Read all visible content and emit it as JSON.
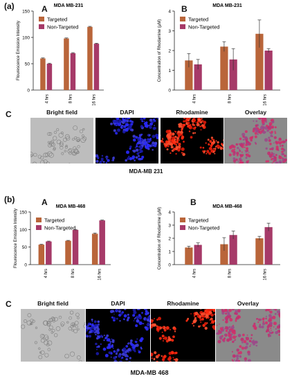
{
  "panels": [
    {
      "label": "(a)",
      "chart_a": {
        "letter": "A",
        "title": "MDA MB-231",
        "ylabel": "Flourescence Emission Intensity",
        "categories": [
          "4 hrs",
          "8 hrs",
          "16 hrs"
        ],
        "ylim": [
          0,
          150
        ],
        "yticks": [
          "0",
          "50",
          "100",
          "150"
        ],
        "series": [
          {
            "name": "Targeted",
            "color": "#b9653a",
            "values": [
              60,
              98,
              120
            ],
            "errors": [
              1,
              1,
              1
            ]
          },
          {
            "name": "Non-Targeted",
            "color": "#a63a68",
            "values": [
              50,
              70,
              88
            ],
            "errors": [
              1,
              1,
              1
            ]
          }
        ]
      },
      "chart_b": {
        "letter": "B",
        "title": "MDA MB-231",
        "ylabel": "Concentration of Rhodamine (µM)",
        "categories": [
          "4 hrs",
          "8 hrs",
          "16 hrs"
        ],
        "ylim": [
          0,
          4
        ],
        "yticks": [
          "0",
          "1",
          "2",
          "3",
          "4"
        ],
        "series": [
          {
            "name": "Targeted",
            "color": "#b9653a",
            "values": [
              1.5,
              2.2,
              2.85
            ],
            "errors": [
              0.35,
              0.25,
              0.7
            ]
          },
          {
            "name": "Non-Targeted",
            "color": "#a63a68",
            "values": [
              1.3,
              1.55,
              2.0
            ],
            "errors": [
              0.25,
              0.55,
              0.1
            ]
          }
        ]
      },
      "images_letter": "C",
      "image_labels": [
        "Bright field",
        "DAPI",
        "Rhodamine",
        "Overlay"
      ],
      "caption": "MDA-MB 231"
    },
    {
      "label": "(b)",
      "chart_a": {
        "letter": "A",
        "title": "MDA MB-468",
        "ylabel": "Flourescence Emission Intensity",
        "categories": [
          "4 hrs",
          "8 hrs",
          "16 hrs"
        ],
        "ylim": [
          0,
          150
        ],
        "yticks": [
          "0",
          "50",
          "100",
          "150"
        ],
        "series": [
          {
            "name": "Targeted",
            "color": "#b9653a",
            "values": [
              57,
              68,
              88
            ],
            "errors": [
              1,
              1,
              2
            ]
          },
          {
            "name": "Non-Targeted",
            "color": "#a63a68",
            "values": [
              66,
              99,
              126
            ],
            "errors": [
              1,
              1,
              1
            ]
          }
        ]
      },
      "chart_b": {
        "letter": "B",
        "title": "MDA MB-468",
        "ylabel": "Concentration of Rhodamine (µM)",
        "categories": [
          "4 hrs",
          "8 hrs",
          "16 hrs"
        ],
        "ylim": [
          0,
          4
        ],
        "yticks": [
          "0",
          "1",
          "2",
          "3",
          "4"
        ],
        "series": [
          {
            "name": "Targeted",
            "color": "#b9653a",
            "values": [
              1.3,
              1.55,
              2.0
            ],
            "errors": [
              0.1,
              0.5,
              0.15
            ]
          },
          {
            "name": "Non-Targeted",
            "color": "#a63a68",
            "values": [
              1.5,
              2.25,
              2.85
            ],
            "errors": [
              0.15,
              0.3,
              0.3
            ]
          }
        ]
      },
      "images_letter": "C",
      "image_labels": [
        "Bright field",
        "DAPI",
        "Rhodamine",
        "Overlay"
      ],
      "caption": "MDA-MB 468"
    }
  ],
  "chart_data": [
    {
      "type": "bar",
      "title": "MDA MB-231",
      "ylabel": "Flourescence Emission Intensity",
      "categories": [
        "4 hrs",
        "8 hrs",
        "16 hrs"
      ],
      "ylim": [
        0,
        150
      ],
      "series": [
        {
          "name": "Targeted",
          "values": [
            60,
            98,
            120
          ]
        },
        {
          "name": "Non-Targeted",
          "values": [
            50,
            70,
            88
          ]
        }
      ]
    },
    {
      "type": "bar",
      "title": "MDA MB-231",
      "ylabel": "Concentration of Rhodamine (µM)",
      "categories": [
        "4 hrs",
        "8 hrs",
        "16 hrs"
      ],
      "ylim": [
        0,
        4
      ],
      "series": [
        {
          "name": "Targeted",
          "values": [
            1.5,
            2.2,
            2.85
          ]
        },
        {
          "name": "Non-Targeted",
          "values": [
            1.3,
            1.55,
            2.0
          ]
        }
      ]
    },
    {
      "type": "bar",
      "title": "MDA MB-468",
      "ylabel": "Flourescence Emission Intensity",
      "categories": [
        "4 hrs",
        "8 hrs",
        "16 hrs"
      ],
      "ylim": [
        0,
        150
      ],
      "series": [
        {
          "name": "Targeted",
          "values": [
            57,
            68,
            88
          ]
        },
        {
          "name": "Non-Targeted",
          "values": [
            66,
            99,
            126
          ]
        }
      ]
    },
    {
      "type": "bar",
      "title": "MDA MB-468",
      "ylabel": "Concentration of Rhodamine (µM)",
      "categories": [
        "4 hrs",
        "8 hrs",
        "16 hrs"
      ],
      "ylim": [
        0,
        4
      ],
      "series": [
        {
          "name": "Targeted",
          "values": [
            1.3,
            1.55,
            2.0
          ]
        },
        {
          "name": "Non-Targeted",
          "values": [
            1.5,
            2.25,
            2.85
          ]
        }
      ]
    }
  ]
}
